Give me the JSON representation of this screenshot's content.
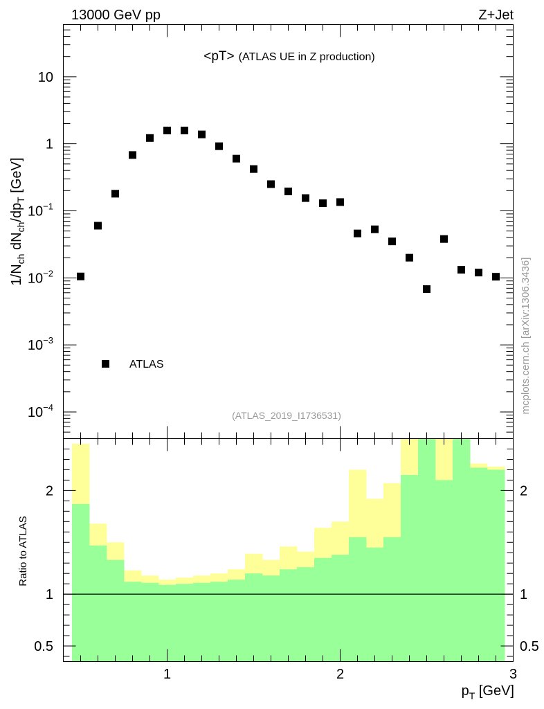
{
  "header": {
    "left_label": "13000 GeV pp",
    "right_label": "Z+Jet"
  },
  "side_label": "mcplots.cern.ch [arXiv:1306.3436]",
  "chart_data": [
    {
      "type": "scatter",
      "title": "<pT>",
      "subtitle": "(ATLAS UE in Z production)",
      "analysis_id": "(ATLAS_2019_I1736531)",
      "ylabel": "1/N_ch dN_ch/dp_T [GeV]",
      "yscale": "log",
      "ylim": [
        4e-05,
        60
      ],
      "xlim": [
        0.4,
        3.0
      ],
      "y_ticks": [
        {
          "value": 0.0001,
          "base": "10",
          "exp": "−4"
        },
        {
          "value": 0.001,
          "base": "10",
          "exp": "−3"
        },
        {
          "value": 0.01,
          "base": "10",
          "exp": "−2"
        },
        {
          "value": 0.1,
          "base": "10",
          "exp": "−1"
        },
        {
          "value": 1,
          "base": "1",
          "exp": ""
        },
        {
          "value": 10,
          "base": "10",
          "exp": ""
        }
      ],
      "legend": {
        "label": "ATLAS",
        "position": "lower-left"
      },
      "series": [
        {
          "name": "ATLAS",
          "marker": "square",
          "x": [
            0.5,
            0.6,
            0.7,
            0.8,
            0.9,
            1.0,
            1.1,
            1.2,
            1.3,
            1.4,
            1.5,
            1.6,
            1.7,
            1.8,
            1.9,
            2.0,
            2.1,
            2.2,
            2.3,
            2.4,
            2.5,
            2.6,
            2.7,
            2.8,
            2.9
          ],
          "y": [
            0.0105,
            0.06,
            0.18,
            0.68,
            1.22,
            1.58,
            1.58,
            1.38,
            0.92,
            0.6,
            0.42,
            0.25,
            0.195,
            0.155,
            0.13,
            0.135,
            0.046,
            0.053,
            0.035,
            0.02,
            0.0068,
            0.038,
            0.0132,
            0.012,
            0.0104
          ]
        }
      ]
    },
    {
      "type": "area",
      "ylabel": "Ratio to ATLAS",
      "xlabel": "p_T [GeV]",
      "xlim": [
        0.4,
        3.0
      ],
      "ylim": [
        0.35,
        2.5
      ],
      "x_ticks": [
        1,
        2,
        3
      ],
      "y_ticks": [
        0.5,
        1,
        2
      ],
      "reference_line": 1,
      "bin_edges": [
        0.45,
        0.55,
        0.65,
        0.75,
        0.85,
        0.95,
        1.05,
        1.15,
        1.25,
        1.35,
        1.45,
        1.55,
        1.65,
        1.75,
        1.85,
        1.95,
        2.05,
        2.15,
        2.25,
        2.35,
        2.45,
        2.55,
        2.65,
        2.75,
        2.85,
        2.95
      ],
      "bands": [
        {
          "name": "total uncertainty",
          "color": "#ffff99",
          "upper": [
            2.45,
            1.68,
            1.5,
            1.23,
            1.18,
            1.14,
            1.16,
            1.18,
            1.2,
            1.24,
            1.39,
            1.33,
            1.46,
            1.41,
            1.64,
            1.7,
            2.2,
            1.92,
            2.07,
            2.5,
            2.5,
            2.5,
            2.5,
            2.26,
            2.23
          ],
          "lower": [
            0.35,
            0.7,
            0.78,
            0.52,
            0.86,
            0.9,
            0.88,
            0.86,
            0.84,
            0.82,
            0.68,
            0.76,
            0.5,
            0.78,
            0.35,
            0.72,
            0.35,
            0.55,
            0.43,
            0.35,
            0.35,
            0.35,
            0.35,
            0.35,
            0.35
          ]
        },
        {
          "name": "statistical uncertainty",
          "color": "#99ff99",
          "upper": [
            1.87,
            1.47,
            1.33,
            1.12,
            1.11,
            1.09,
            1.1,
            1.11,
            1.12,
            1.14,
            1.2,
            1.18,
            1.24,
            1.26,
            1.35,
            1.38,
            1.55,
            1.45,
            1.55,
            2.15,
            2.5,
            2.1,
            2.5,
            2.22,
            2.2
          ],
          "lower": [
            0.35,
            0.35,
            0.35,
            0.35,
            0.35,
            0.35,
            0.35,
            0.35,
            0.35,
            0.35,
            0.35,
            0.35,
            0.35,
            0.35,
            0.35,
            0.35,
            0.35,
            0.35,
            0.35,
            0.35,
            0.35,
            0.35,
            0.35,
            0.35,
            0.35
          ]
        }
      ]
    }
  ]
}
